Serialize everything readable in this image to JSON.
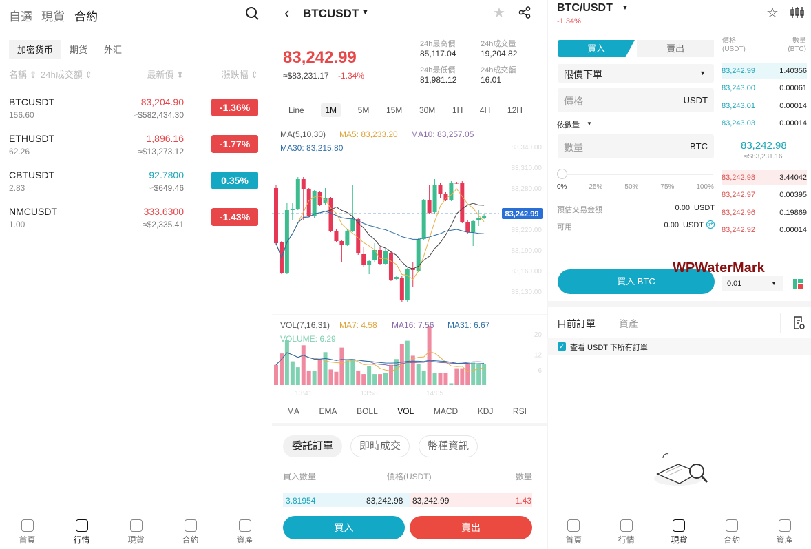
{
  "markets": {
    "top_tabs": [
      "自選",
      "現貨",
      "合約"
    ],
    "active_top_tab": "合約",
    "sub_tabs": [
      "加密货币",
      "期货",
      "外汇"
    ],
    "columns": {
      "name": "名稱 ⇕",
      "volume": "24h成交額 ⇕",
      "price": "最新價 ⇕",
      "change": "漲跌幅 ⇕"
    },
    "rows": [
      {
        "symbol": "BTCUSDT",
        "volume": "156.60",
        "price": "83,204.90",
        "usd": "≈$582,434.30",
        "change": "-1.36%",
        "dir": "down"
      },
      {
        "symbol": "ETHUSDT",
        "volume": "62.26",
        "price": "1,896.16",
        "usd": "≈$13,273.12",
        "change": "-1.77%",
        "dir": "down"
      },
      {
        "symbol": "CBTUSDT",
        "volume": "2.83",
        "price": "92.7800",
        "usd": "≈$649.46",
        "change": "0.35%",
        "dir": "up"
      },
      {
        "symbol": "NMCUSDT",
        "volume": "1.00",
        "price": "333.6300",
        "usd": "≈$2,335.41",
        "change": "-1.43%",
        "dir": "down"
      }
    ]
  },
  "nav": {
    "items": [
      "首頁",
      "行情",
      "現貨",
      "合約",
      "資產"
    ],
    "icons": [
      "home-icon",
      "market-icon",
      "spot-icon",
      "contract-icon",
      "assets-icon"
    ],
    "left_active": "行情",
    "right_active": "現貨"
  },
  "detail": {
    "symbol": "BTCUSDT",
    "price": "83,242.99",
    "usd": "≈$83,231.17",
    "change": "-1.34%",
    "stats": [
      {
        "label": "24h最高價",
        "value": "85,117.04"
      },
      {
        "label": "24h成交量",
        "value": "19,204.82"
      },
      {
        "label": "24h最低價",
        "value": "81,981.12"
      },
      {
        "label": "24h成交額",
        "value": "16.01"
      }
    ],
    "timeframes": [
      "Line",
      "1M",
      "5M",
      "15M",
      "30M",
      "1H",
      "4H",
      "12H"
    ],
    "active_timeframe": "1M",
    "ma_legend": {
      "title": "MA(5,10,30)",
      "ma5": "MA5: 83,233.20",
      "ma10": "MA10: 83,257.05",
      "ma30": "MA30: 83,215.80"
    },
    "vol_legend": {
      "title": "VOL(7,16,31)",
      "ma7": "MA7: 4.58",
      "ma16": "MA16: 7.56",
      "ma31": "MA31: 6.67",
      "volume": "VOLUME: 6.29"
    },
    "current_price_tag": "83,242.99",
    "indicators": [
      "MA",
      "EMA",
      "BOLL",
      "VOL",
      "MACD",
      "KDJ",
      "RSI"
    ],
    "active_indicator": "VOL",
    "pills": [
      "委託訂單",
      "即時成交",
      "幣種資訊"
    ],
    "book_header": {
      "buy_qty": "買入數量",
      "price": "價格(USDT)",
      "qty": "數量"
    },
    "book_row": {
      "buy_qty": "3.81954",
      "bid": "83,242.98",
      "ask": "83,242.99",
      "qty": "1.43"
    },
    "buy_label": "買入",
    "sell_label": "賣出"
  },
  "chart_data": {
    "type": "candlestick",
    "price_axis_ticks": [
      "83,340.00",
      "83,310.00",
      "83,280.00",
      "83,220.00",
      "83,190.00",
      "83,160.00",
      "83,130.00"
    ],
    "price_axis_values": [
      83340,
      83310,
      83280,
      83220,
      83190,
      83160,
      83130
    ],
    "volume_axis_ticks": [
      "20",
      "12",
      "6"
    ],
    "time_ticks": [
      "13:41",
      "13:58",
      "14:05"
    ],
    "time_tick_index": [
      5,
      17,
      29
    ],
    "current_price": 83242.99,
    "colors": {
      "up": "#3dbd8f",
      "down": "#e63757",
      "ma5": "#e9b04a",
      "ma10": "#444444",
      "ma30": "#2f6fa8",
      "ma7": "#e9b04a",
      "ma16": "#8a6aa8",
      "ma31": "#2f6fa8"
    },
    "candles": [
      [
        83280,
        83285,
        83197,
        83200
      ],
      [
        83201,
        83203,
        83155,
        83157
      ],
      [
        83157,
        83258,
        83155,
        83248
      ],
      [
        83248,
        83258,
        83233,
        83250
      ],
      [
        83250,
        83296,
        83248,
        83293
      ],
      [
        83293,
        83296,
        83233,
        83278
      ],
      [
        83278,
        83280,
        83238,
        83240
      ],
      [
        83240,
        83277,
        83237,
        83275
      ],
      [
        83274,
        83276,
        83254,
        83256
      ],
      [
        83258,
        83280,
        83256,
        83265
      ],
      [
        83265,
        83267,
        83216,
        83218
      ],
      [
        83218,
        83220,
        83201,
        83203
      ],
      [
        83203,
        83205,
        83173,
        83198
      ],
      [
        83198,
        83220,
        83196,
        83218
      ],
      [
        83218,
        83285,
        83216,
        83235
      ],
      [
        83235,
        83237,
        83183,
        83185
      ],
      [
        83184,
        83195,
        83166,
        83168
      ],
      [
        83168,
        83176,
        83155,
        83174
      ],
      [
        83175,
        83200,
        83173,
        83190
      ],
      [
        83190,
        83195,
        83168,
        83170
      ],
      [
        83170,
        83191,
        83168,
        83188
      ],
      [
        83186,
        83188,
        83145,
        83147
      ],
      [
        83148,
        83153,
        83146,
        83151
      ],
      [
        83150,
        83152,
        83115,
        83117
      ],
      [
        83117,
        83164,
        83115,
        83162
      ],
      [
        83164,
        83173,
        83136,
        83161
      ],
      [
        83160,
        83208,
        83158,
        83206
      ],
      [
        83206,
        83264,
        83204,
        83262
      ],
      [
        83262,
        83285,
        83242,
        83244
      ],
      [
        83245,
        83293,
        83243,
        83285
      ],
      [
        83285,
        83287,
        83265,
        83271
      ],
      [
        83272,
        83274,
        83261,
        83263
      ],
      [
        83263,
        83290,
        83261,
        83288
      ],
      [
        83288,
        83289,
        83286,
        83287
      ],
      [
        83288,
        83290,
        83229,
        83231
      ],
      [
        83231,
        83233,
        83214,
        83216
      ],
      [
        83216,
        83234,
        83196,
        83232
      ],
      [
        83233,
        83248,
        83225,
        83237
      ],
      [
        83236,
        83243,
        83235,
        83240
      ]
    ],
    "volumes": [
      7.9,
      12.4,
      17.8,
      9.3,
      7,
      15.6,
      5.7,
      5.7,
      10.2,
      12.9,
      6.1,
      5.2,
      14.7,
      9.7,
      10.2,
      5.7,
      4.3,
      7.5,
      4.3,
      4.3,
      4.8,
      7.9,
      10.2,
      16.2,
      17.4,
      11.5,
      8.4,
      5.7,
      23.2,
      4.8,
      4.8,
      4.8,
      0.7,
      6.6,
      6.6,
      8.4,
      8.8,
      8.4,
      8.1
    ]
  },
  "trade": {
    "pair": "BTC/USDT",
    "change": "-1.34%",
    "buy_tab": "買入",
    "sell_tab": "賣出",
    "order_type": "限價下單",
    "price_placeholder": "價格",
    "price_unit": "USDT",
    "by_qty": "依數量",
    "qty_placeholder": "數量",
    "qty_unit": "BTC",
    "slider_value_percent": 0,
    "slider_marks": [
      "0%",
      "25%",
      "50%",
      "75%",
      "100%"
    ],
    "est_label": "預估交易金額",
    "est_value": "0.00  USDT",
    "avail_label": "可用",
    "avail_value": "0.00  USDT",
    "submit": "買入 BTC",
    "depth_select": "0.01",
    "book": {
      "price_header": "價格\n(USDT)",
      "qty_header": "數量\n(BTC)",
      "asks": [
        [
          "83,242.99",
          "1.40356"
        ],
        [
          "83,243.00",
          "0.00061"
        ],
        [
          "83,243.01",
          "0.00014"
        ],
        [
          "83,243.03",
          "0.00014"
        ]
      ],
      "mid_price": "83,242.98",
      "mid_usd": "≈$83,231.16",
      "bids": [
        [
          "83,242.98",
          "3.44042"
        ],
        [
          "83,242.97",
          "0.00395"
        ],
        [
          "83,242.96",
          "0.19869"
        ],
        [
          "83,242.92",
          "0.00014"
        ]
      ]
    },
    "orders_tabs": [
      "目前訂單",
      "資產"
    ],
    "show_all_label": "查看 USDT 下所有訂單",
    "show_all_checked": true
  },
  "watermark": "WPWaterMark"
}
